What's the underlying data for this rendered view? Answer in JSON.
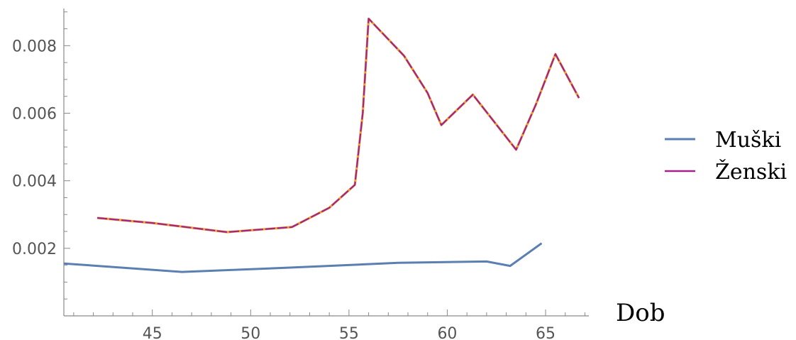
{
  "chart_data": {
    "type": "line",
    "title": "",
    "xlabel": "Dob",
    "ylabel": "",
    "xlim": [
      40.5,
      67.2
    ],
    "ylim": [
      0,
      0.0091
    ],
    "xticks": [
      45,
      50,
      55,
      60,
      65
    ],
    "xtick_labels": [
      "45",
      "50",
      "55",
      "60",
      "65"
    ],
    "yticks": [
      0.002,
      0.004,
      0.006,
      0.008
    ],
    "ytick_labels": [
      "0.002",
      "0.004",
      "0.006",
      "0.008"
    ],
    "grid": false,
    "legend_position": "right",
    "series": [
      {
        "name": "Muški",
        "color": "#5b7fb0",
        "x": [
          40.5,
          46.5,
          52,
          57.5,
          62,
          63.2,
          64.8
        ],
        "y": [
          0.00155,
          0.0013,
          0.00143,
          0.00157,
          0.00161,
          0.00148,
          0.00215
        ]
      },
      {
        "name": "Ženski",
        "color": "#a0248c",
        "x": [
          42.2,
          45,
          48.8,
          52.1,
          54,
          55.3,
          55.7,
          56,
          57.8,
          59,
          59.7,
          61.3,
          63.5,
          64.5,
          65.5,
          66.7
        ],
        "y": [
          0.0029,
          0.00275,
          0.00248,
          0.00263,
          0.0032,
          0.00388,
          0.006,
          0.0088,
          0.0077,
          0.0066,
          0.00565,
          0.00655,
          0.00492,
          0.00625,
          0.00775,
          0.00645
        ]
      }
    ]
  }
}
